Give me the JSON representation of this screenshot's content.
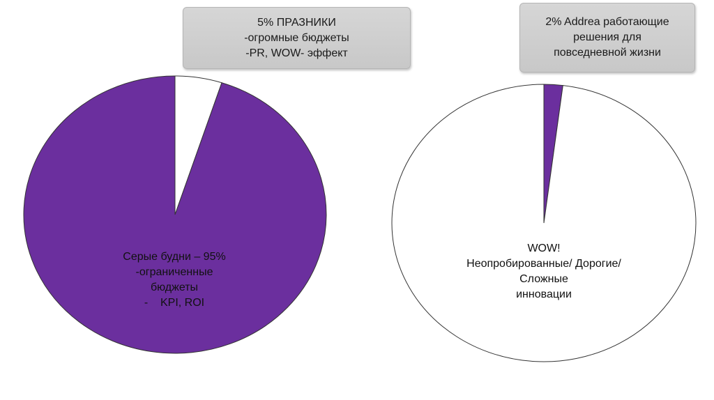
{
  "chart_data": [
    {
      "type": "pie",
      "slices": [
        {
          "label": "Серые будни",
          "value": 95,
          "color": "#6b2f9e"
        },
        {
          "label": "ПРАЗНИКИ",
          "value": 5,
          "color": "#ffffff"
        }
      ],
      "slice_text": [
        "Серые будни – 95%",
        "-ограниченные",
        "бюджеты",
        "-    KPI, ROI"
      ],
      "callout_text": [
        "5% ПРАЗНИКИ",
        "-огромные бюджеты",
        "-PR, WOW- эффект"
      ]
    },
    {
      "type": "pie",
      "slices": [
        {
          "label": "Addrea работающие решения для повседневной жизни",
          "value": 2,
          "color": "#6b2f9e"
        },
        {
          "label": "WOW! Неопробированные/ Дорогие/ Сложные инновации",
          "value": 98,
          "color": "#ffffff"
        }
      ],
      "slice_text": [
        "WOW!",
        "Неопробированные/ Дорогие/",
        "Сложные",
        "инновации"
      ],
      "callout_text": [
        "2% Addrea работающие",
        "решения для",
        "повседневной жизни"
      ]
    }
  ],
  "colors": {
    "purple": "#6b2f9e",
    "outline": "#333333",
    "callout_bg": "#cfcfcf"
  }
}
